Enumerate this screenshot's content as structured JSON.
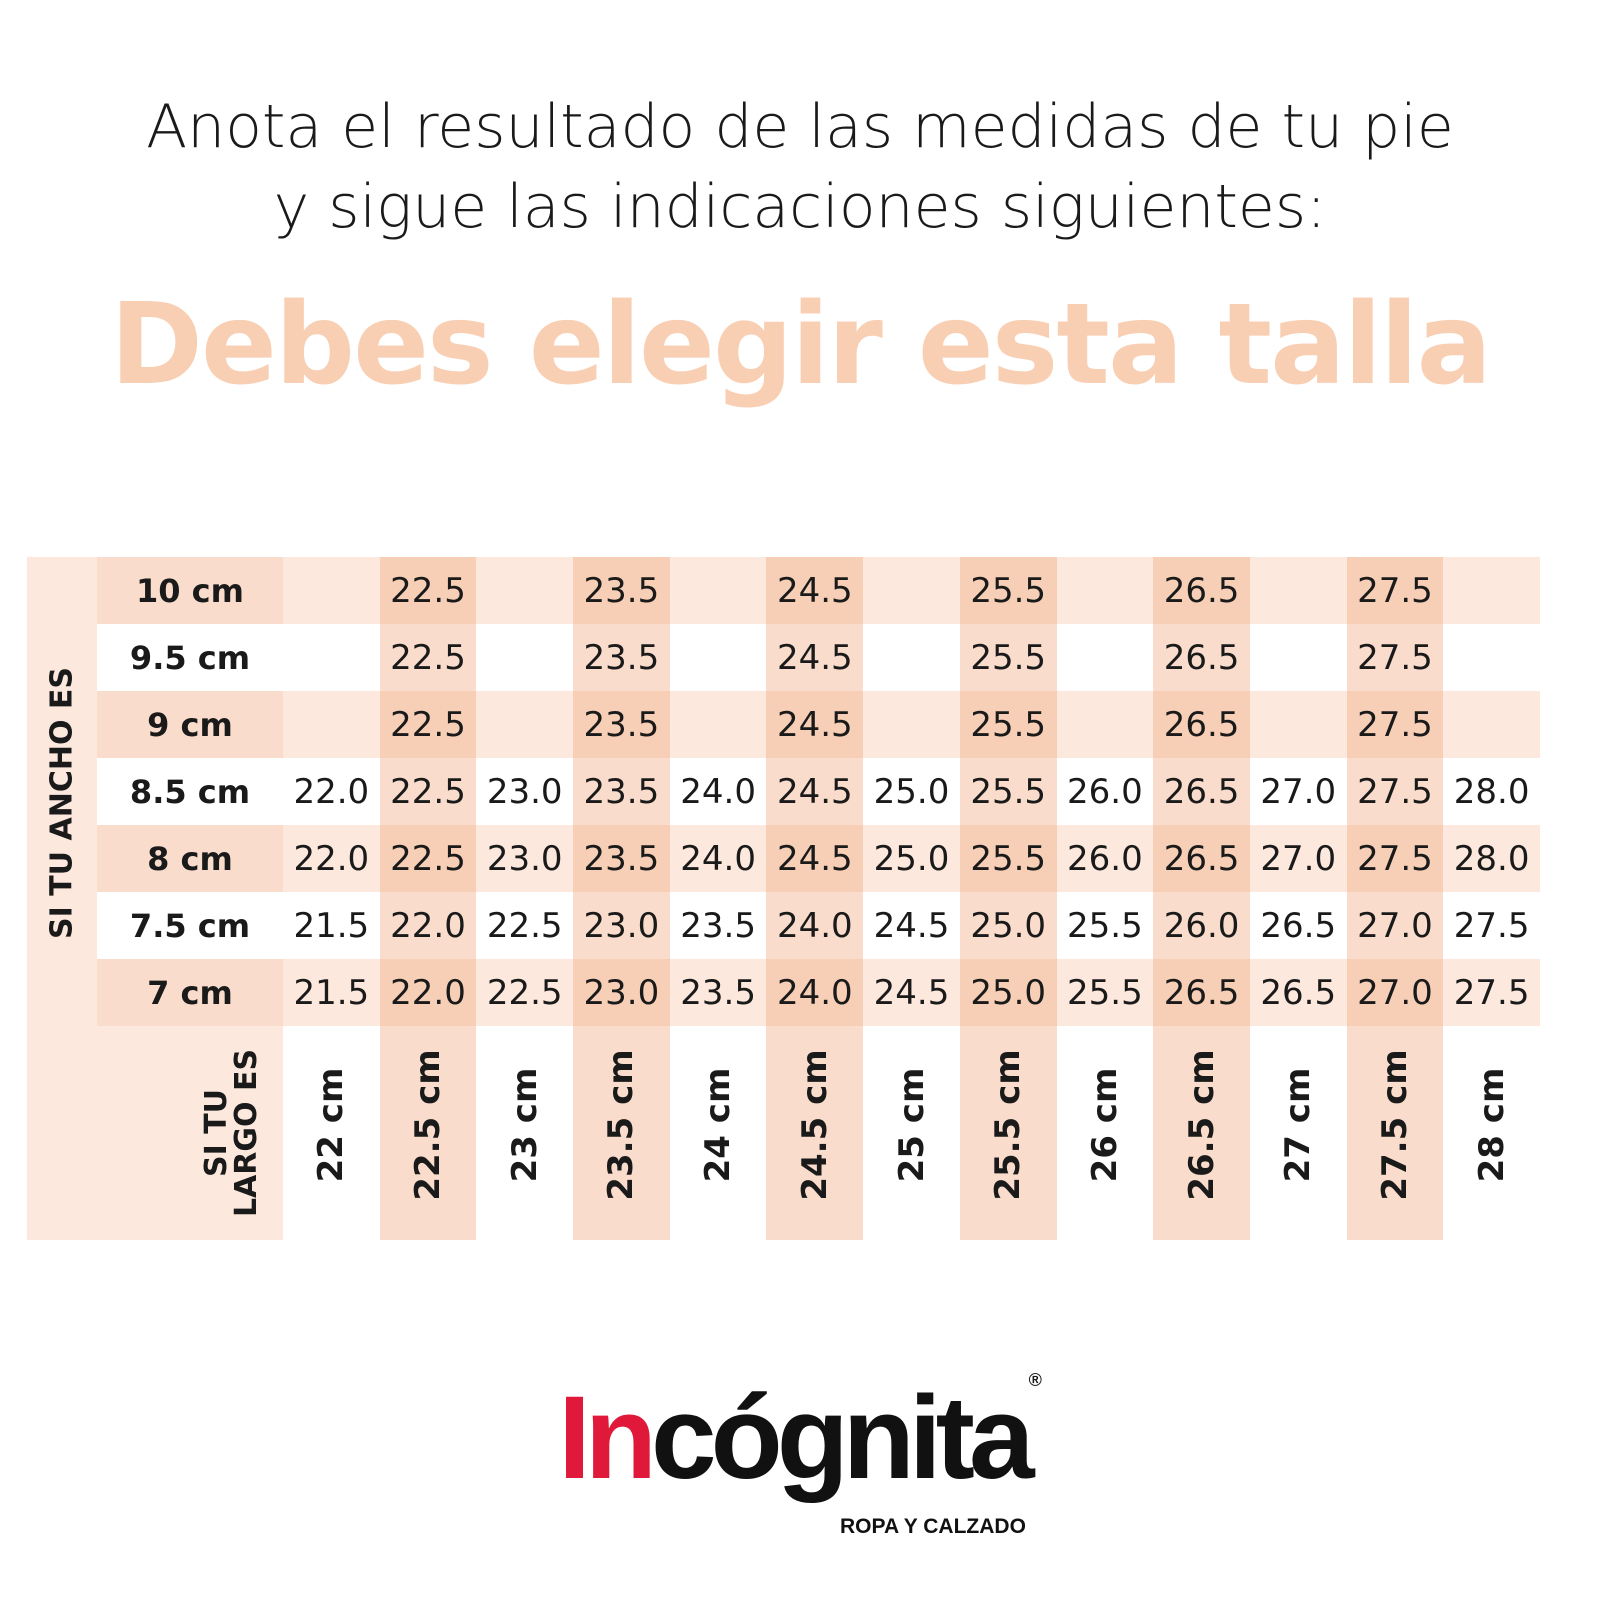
{
  "header": {
    "line1": "Anota el resultado de las medidas de tu pie",
    "line2": "y sigue las indicaciones siguientes:",
    "title": "Debes elegir esta talla"
  },
  "table": {
    "row_axis_label": "SI TU ANCHO ES",
    "column_axis_label": [
      "SI TU",
      "LARGO ES"
    ],
    "row_labels": [
      "10 cm",
      "9.5 cm",
      "9 cm",
      "8.5 cm",
      "8 cm",
      "7.5 cm",
      "7 cm"
    ],
    "column_labels": [
      "22 cm",
      "22.5 cm",
      "23 cm",
      "23.5 cm",
      "24 cm",
      "24.5 cm",
      "25 cm",
      "25.5 cm",
      "26 cm",
      "26.5 cm",
      "27 cm",
      "27.5 cm",
      "28 cm"
    ],
    "rows": [
      [
        null,
        "22.5",
        null,
        "23.5",
        null,
        "24.5",
        null,
        "25.5",
        null,
        "26.5",
        null,
        "27.5",
        null
      ],
      [
        null,
        "22.5",
        null,
        "23.5",
        null,
        "24.5",
        null,
        "25.5",
        null,
        "26.5",
        null,
        "27.5",
        null
      ],
      [
        null,
        "22.5",
        null,
        "23.5",
        null,
        "24.5",
        null,
        "25.5",
        null,
        "26.5",
        null,
        "27.5",
        null
      ],
      [
        "22.0",
        "22.5",
        "23.0",
        "23.5",
        "24.0",
        "24.5",
        "25.0",
        "25.5",
        "26.0",
        "26.5",
        "27.0",
        "27.5",
        "28.0"
      ],
      [
        "22.0",
        "22.5",
        "23.0",
        "23.5",
        "24.0",
        "24.5",
        "25.0",
        "25.5",
        "26.0",
        "26.5",
        "27.0",
        "27.5",
        "28.0"
      ],
      [
        "21.5",
        "22.0",
        "22.5",
        "23.0",
        "23.5",
        "24.0",
        "24.5",
        "25.0",
        "25.5",
        "26.0",
        "26.5",
        "27.0",
        "27.5"
      ],
      [
        "21.5",
        "22.0",
        "22.5",
        "23.0",
        "23.5",
        "24.0",
        "24.5",
        "25.0",
        "25.5",
        "26.5",
        "26.5",
        "27.0",
        "27.5"
      ]
    ]
  },
  "logo": {
    "brand_red": "In",
    "brand_black": "cógnita",
    "registered": "®",
    "tagline": "ROPA Y CALZADO"
  }
}
